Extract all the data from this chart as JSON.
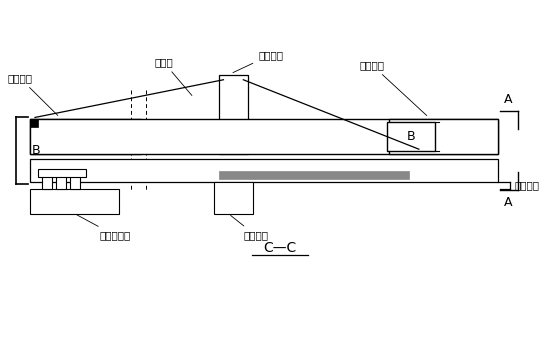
{
  "title": "C—C",
  "bg_color": "#ffffff",
  "labels": {
    "yi_jiao": "已浇棁段",
    "dai_jiao": "待浇棁段",
    "xie_la": "斜拉索",
    "xing_zou": "行走沟挂",
    "gong_zuo": "工作平台",
    "hou_mao": "后锶座系统",
    "ye_ya": "液压装置",
    "B": "B",
    "A": "A"
  },
  "font_size": 7.5
}
